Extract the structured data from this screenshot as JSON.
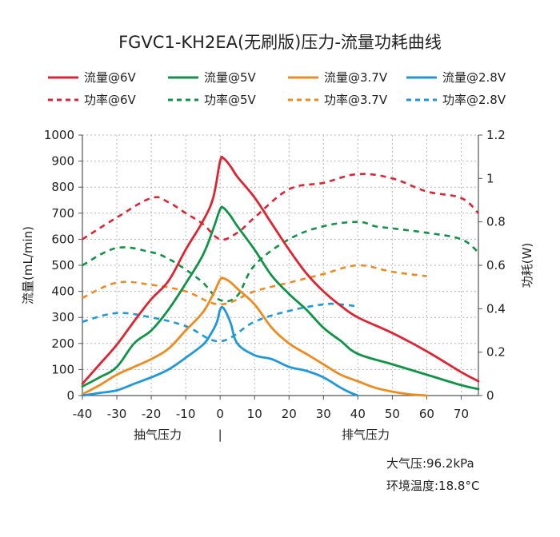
{
  "chart_data": {
    "type": "line",
    "title": "FGVC1-KH2EA(无刷版)压力-流量功耗曲线",
    "x_range": [
      -40,
      75
    ],
    "x_ticks": [
      -40,
      -30,
      -20,
      -10,
      0,
      10,
      20,
      30,
      40,
      50,
      60,
      70
    ],
    "x_tick_labels": [
      "-40",
      "-30",
      "-20",
      "-10",
      "0",
      "10",
      "20",
      "30",
      "40",
      "50",
      "60",
      "70"
    ],
    "x_section_labels": {
      "left": "抽气压力",
      "divider": "|",
      "right": "排气压力"
    },
    "y_left": {
      "label": "流量(mL/min)",
      "range": [
        0,
        1000
      ],
      "ticks": [
        0,
        100,
        200,
        300,
        400,
        500,
        600,
        700,
        800,
        900,
        1000
      ],
      "tick_labels": [
        "0",
        "100",
        "200",
        "300",
        "400",
        "500",
        "600",
        "700",
        "800",
        "900",
        "1000"
      ]
    },
    "y_right": {
      "label": "功耗(W)",
      "range": [
        0,
        1.2
      ],
      "ticks": [
        0,
        0.2,
        0.4,
        0.6,
        0.8,
        1.0,
        1.2
      ],
      "tick_labels": [
        "0",
        "0.2",
        "0.4",
        "0.6",
        "0.8",
        "1",
        "1.2"
      ]
    },
    "grid": true,
    "legend_position": "top",
    "series": [
      {
        "name": "流量@6V",
        "axis": "left",
        "style": "solid",
        "color": "#e02330",
        "points": [
          [
            -40,
            45
          ],
          [
            -35,
            120
          ],
          [
            -30,
            195
          ],
          [
            -25,
            285
          ],
          [
            -20,
            370
          ],
          [
            -15,
            440
          ],
          [
            -10,
            560
          ],
          [
            -5,
            670
          ],
          [
            -2,
            760
          ],
          [
            0,
            900
          ],
          [
            1,
            910
          ],
          [
            3,
            880
          ],
          [
            5,
            840
          ],
          [
            10,
            760
          ],
          [
            15,
            660
          ],
          [
            20,
            560
          ],
          [
            25,
            470
          ],
          [
            30,
            400
          ],
          [
            35,
            345
          ],
          [
            40,
            300
          ],
          [
            50,
            240
          ],
          [
            60,
            170
          ],
          [
            70,
            90
          ],
          [
            75,
            55
          ]
        ]
      },
      {
        "name": "流量@5V",
        "axis": "left",
        "style": "solid",
        "color": "#0e9444",
        "points": [
          [
            -40,
            35
          ],
          [
            -35,
            70
          ],
          [
            -30,
            110
          ],
          [
            -25,
            200
          ],
          [
            -20,
            250
          ],
          [
            -15,
            330
          ],
          [
            -10,
            430
          ],
          [
            -5,
            540
          ],
          [
            -2,
            640
          ],
          [
            0,
            715
          ],
          [
            1,
            720
          ],
          [
            3,
            690
          ],
          [
            5,
            650
          ],
          [
            10,
            560
          ],
          [
            15,
            460
          ],
          [
            20,
            390
          ],
          [
            25,
            330
          ],
          [
            30,
            260
          ],
          [
            35,
            210
          ],
          [
            40,
            160
          ],
          [
            50,
            120
          ],
          [
            60,
            80
          ],
          [
            70,
            40
          ],
          [
            75,
            25
          ]
        ]
      },
      {
        "name": "流量@3.7V",
        "axis": "left",
        "style": "solid",
        "color": "#f08a1c",
        "points": [
          [
            -40,
            5
          ],
          [
            -35,
            40
          ],
          [
            -30,
            80
          ],
          [
            -25,
            110
          ],
          [
            -20,
            140
          ],
          [
            -15,
            180
          ],
          [
            -10,
            250
          ],
          [
            -5,
            320
          ],
          [
            -2,
            390
          ],
          [
            0,
            445
          ],
          [
            1,
            450
          ],
          [
            3,
            435
          ],
          [
            5,
            410
          ],
          [
            10,
            350
          ],
          [
            15,
            260
          ],
          [
            20,
            200
          ],
          [
            25,
            160
          ],
          [
            30,
            120
          ],
          [
            35,
            80
          ],
          [
            40,
            55
          ],
          [
            45,
            30
          ],
          [
            50,
            15
          ],
          [
            55,
            5
          ],
          [
            60,
            0
          ]
        ]
      },
      {
        "name": "流量@2.8V",
        "axis": "left",
        "style": "solid",
        "color": "#1e98dc",
        "points": [
          [
            -40,
            0
          ],
          [
            -35,
            10
          ],
          [
            -30,
            20
          ],
          [
            -25,
            45
          ],
          [
            -20,
            70
          ],
          [
            -15,
            100
          ],
          [
            -10,
            145
          ],
          [
            -5,
            195
          ],
          [
            -3,
            230
          ],
          [
            -1,
            280
          ],
          [
            0,
            330
          ],
          [
            1,
            335
          ],
          [
            3,
            280
          ],
          [
            5,
            200
          ],
          [
            10,
            155
          ],
          [
            15,
            140
          ],
          [
            20,
            110
          ],
          [
            25,
            95
          ],
          [
            30,
            70
          ],
          [
            35,
            30
          ],
          [
            38,
            10
          ],
          [
            40,
            0
          ]
        ]
      },
      {
        "name": "功率@6V",
        "axis": "right",
        "style": "dashed",
        "color": "#e02330",
        "points": [
          [
            -40,
            0.72
          ],
          [
            -30,
            0.82
          ],
          [
            -20,
            0.91
          ],
          [
            -15,
            0.89
          ],
          [
            -10,
            0.84
          ],
          [
            -5,
            0.79
          ],
          [
            0,
            0.72
          ],
          [
            5,
            0.75
          ],
          [
            10,
            0.82
          ],
          [
            20,
            0.95
          ],
          [
            30,
            0.98
          ],
          [
            40,
            1.02
          ],
          [
            50,
            1.0
          ],
          [
            60,
            0.94
          ],
          [
            70,
            0.91
          ],
          [
            75,
            0.84
          ]
        ]
      },
      {
        "name": "功率@5V",
        "axis": "right",
        "style": "dashed",
        "color": "#0e9444",
        "points": [
          [
            -40,
            0.6
          ],
          [
            -30,
            0.68
          ],
          [
            -20,
            0.66
          ],
          [
            -15,
            0.63
          ],
          [
            -10,
            0.58
          ],
          [
            -5,
            0.52
          ],
          [
            0,
            0.44
          ],
          [
            5,
            0.46
          ],
          [
            10,
            0.6
          ],
          [
            20,
            0.72
          ],
          [
            30,
            0.78
          ],
          [
            40,
            0.8
          ],
          [
            45,
            0.78
          ],
          [
            50,
            0.77
          ],
          [
            60,
            0.75
          ],
          [
            70,
            0.72
          ],
          [
            75,
            0.66
          ]
        ]
      },
      {
        "name": "功率@3.7V",
        "axis": "right",
        "style": "dashed",
        "color": "#f08a1c",
        "points": [
          [
            -40,
            0.45
          ],
          [
            -30,
            0.52
          ],
          [
            -20,
            0.51
          ],
          [
            -10,
            0.48
          ],
          [
            0,
            0.42
          ],
          [
            10,
            0.48
          ],
          [
            20,
            0.52
          ],
          [
            30,
            0.56
          ],
          [
            40,
            0.6
          ],
          [
            50,
            0.57
          ],
          [
            60,
            0.55
          ]
        ]
      },
      {
        "name": "功率@2.8V",
        "axis": "right",
        "style": "dashed",
        "color": "#1e98dc",
        "points": [
          [
            -40,
            0.34
          ],
          [
            -30,
            0.38
          ],
          [
            -20,
            0.36
          ],
          [
            -10,
            0.32
          ],
          [
            0,
            0.25
          ],
          [
            10,
            0.34
          ],
          [
            20,
            0.39
          ],
          [
            30,
            0.42
          ],
          [
            35,
            0.42
          ],
          [
            40,
            0.41
          ]
        ]
      }
    ],
    "annotations": [
      "大气压:96.2kPa",
      "环境温度:18.8°C"
    ]
  }
}
